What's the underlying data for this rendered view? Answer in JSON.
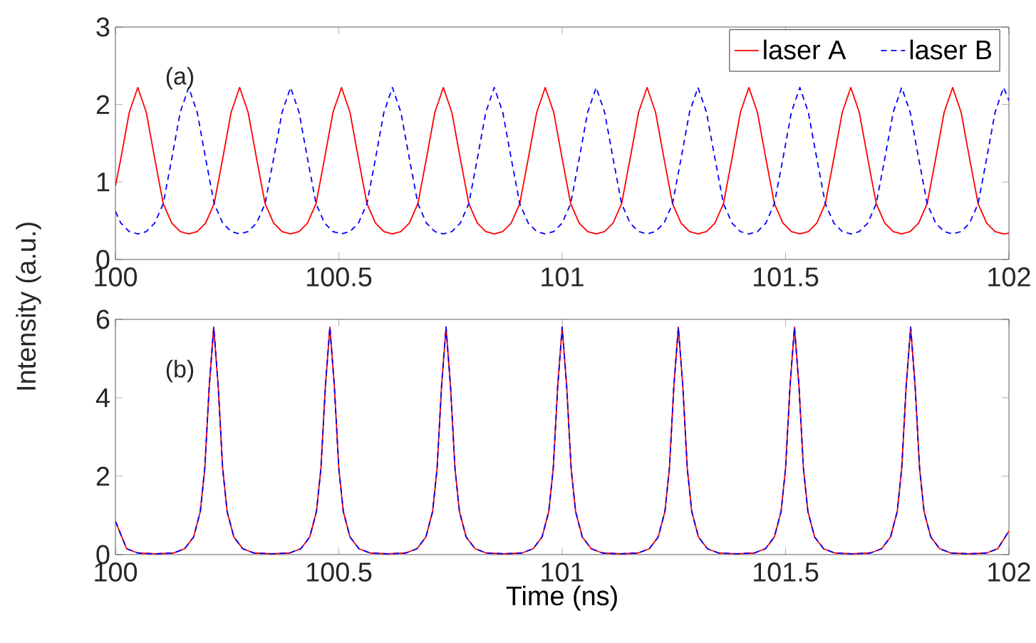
{
  "chart_data": [
    {
      "type": "line",
      "ylabel": "Intensity (a.u.)",
      "annotations": [
        "(a)"
      ],
      "legend": "top right",
      "xlim": [
        100,
        102
      ],
      "ylim": [
        0,
        3
      ],
      "xticks": [
        100,
        100.5,
        101,
        101.5,
        102
      ],
      "yticks": [
        0,
        1,
        2,
        3
      ],
      "x": [
        100,
        100.012,
        100.031,
        100.05,
        100.069,
        100.088,
        100.107,
        100.126,
        100.145,
        100.164,
        100.183,
        100.202,
        100.221,
        100.24,
        100.259,
        100.278,
        100.297,
        100.316,
        100.335,
        100.354,
        100.373,
        100.392,
        100.411,
        100.43,
        100.449,
        100.468,
        100.487,
        100.506,
        100.525,
        100.544,
        100.563,
        100.582,
        100.601,
        100.62,
        100.639,
        100.658,
        100.677,
        100.696,
        100.715,
        100.734,
        100.753,
        100.772,
        100.791,
        100.81,
        100.829,
        100.848,
        100.867,
        100.886,
        100.905,
        100.924,
        100.943,
        100.962,
        100.981,
        101.0,
        101.019,
        101.038,
        101.057,
        101.076,
        101.095,
        101.114,
        101.133,
        101.152,
        101.171,
        101.19,
        101.209,
        101.228,
        101.247,
        101.266,
        101.285,
        101.304,
        101.323,
        101.342,
        101.361,
        101.38,
        101.399,
        101.418,
        101.437,
        101.456,
        101.475,
        101.494,
        101.513,
        101.532,
        101.551,
        101.57,
        101.589,
        101.608,
        101.627,
        101.646,
        101.665,
        101.684,
        101.703,
        101.722,
        101.741,
        101.76,
        101.779,
        101.798,
        101.817,
        101.836,
        101.855,
        101.874,
        101.893,
        101.912,
        101.931,
        101.95,
        101.969,
        101.988,
        102
      ],
      "series": [
        {
          "name": "laser A",
          "color": "#ff0000",
          "line_style": "solid",
          "values": [
            0.95,
            1.3,
            1.9,
            2.22,
            1.9,
            1.3,
            0.72,
            0.47,
            0.36,
            0.33,
            0.36,
            0.47,
            0.72,
            1.3,
            1.9,
            2.22,
            1.9,
            1.3,
            0.72,
            0.47,
            0.36,
            0.33,
            0.36,
            0.47,
            0.72,
            1.3,
            1.9,
            2.22,
            1.9,
            1.3,
            0.72,
            0.47,
            0.36,
            0.33,
            0.36,
            0.47,
            0.72,
            1.3,
            1.9,
            2.22,
            1.9,
            1.3,
            0.72,
            0.47,
            0.36,
            0.33,
            0.36,
            0.47,
            0.72,
            1.3,
            1.9,
            2.22,
            1.9,
            1.3,
            0.72,
            0.47,
            0.36,
            0.33,
            0.36,
            0.47,
            0.72,
            1.3,
            1.9,
            2.22,
            1.9,
            1.3,
            0.72,
            0.47,
            0.36,
            0.33,
            0.36,
            0.47,
            0.72,
            1.3,
            1.9,
            2.22,
            1.9,
            1.3,
            0.72,
            0.47,
            0.36,
            0.33,
            0.36,
            0.47,
            0.72,
            1.3,
            1.9,
            2.22,
            1.9,
            1.3,
            0.72,
            0.47,
            0.36,
            0.33,
            0.36,
            0.47,
            0.72,
            1.3,
            1.9,
            2.22,
            1.9,
            1.3,
            0.72,
            0.47,
            0.36,
            0.33,
            0.34
          ]
        },
        {
          "name": "laser B",
          "color": "#0000ff",
          "line_style": "dashed",
          "values": [
            0.62,
            0.47,
            0.36,
            0.33,
            0.36,
            0.47,
            0.72,
            1.3,
            1.9,
            2.22,
            1.9,
            1.3,
            0.72,
            0.47,
            0.36,
            0.33,
            0.36,
            0.47,
            0.72,
            1.3,
            1.9,
            2.22,
            1.9,
            1.3,
            0.72,
            0.47,
            0.36,
            0.33,
            0.36,
            0.47,
            0.72,
            1.3,
            1.9,
            2.22,
            1.9,
            1.3,
            0.72,
            0.47,
            0.36,
            0.33,
            0.36,
            0.47,
            0.72,
            1.3,
            1.9,
            2.22,
            1.9,
            1.3,
            0.72,
            0.47,
            0.36,
            0.33,
            0.36,
            0.47,
            0.72,
            1.3,
            1.9,
            2.22,
            1.9,
            1.3,
            0.72,
            0.47,
            0.36,
            0.33,
            0.36,
            0.47,
            0.72,
            1.3,
            1.9,
            2.22,
            1.9,
            1.3,
            0.72,
            0.47,
            0.36,
            0.33,
            0.36,
            0.47,
            0.72,
            1.3,
            1.9,
            2.22,
            1.9,
            1.3,
            0.72,
            0.47,
            0.36,
            0.33,
            0.36,
            0.47,
            0.72,
            1.3,
            1.9,
            2.22,
            1.9,
            1.3,
            0.72,
            0.47,
            0.36,
            0.33,
            0.36,
            0.47,
            0.72,
            1.3,
            1.9,
            2.22,
            2.05
          ]
        }
      ]
    },
    {
      "type": "line",
      "xlabel": "Time (ns)",
      "annotations": [
        "(b)"
      ],
      "xlim": [
        100,
        102
      ],
      "ylim": [
        0,
        6
      ],
      "xticks": [
        100,
        100.5,
        101,
        101.5,
        102
      ],
      "yticks": [
        0,
        2,
        4,
        6
      ],
      "x": [
        100,
        100.025,
        100.05,
        100.09,
        100.13,
        100.155,
        100.175,
        100.19,
        100.2,
        100.21,
        100.22,
        100.23,
        100.24,
        100.25,
        100.265,
        100.285,
        100.31,
        100.35,
        100.39,
        100.415,
        100.435,
        100.45,
        100.46,
        100.47,
        100.48,
        100.49,
        100.5,
        100.51,
        100.525,
        100.545,
        100.57,
        100.61,
        100.65,
        100.675,
        100.695,
        100.71,
        100.72,
        100.73,
        100.74,
        100.75,
        100.76,
        100.77,
        100.785,
        100.805,
        100.83,
        100.87,
        100.91,
        100.935,
        100.955,
        100.97,
        100.98,
        100.99,
        101,
        101.01,
        101.02,
        101.03,
        101.045,
        101.065,
        101.09,
        101.13,
        101.17,
        101.195,
        101.215,
        101.23,
        101.24,
        101.25,
        101.26,
        101.27,
        101.28,
        101.29,
        101.305,
        101.325,
        101.35,
        101.39,
        101.43,
        101.455,
        101.475,
        101.49,
        101.5,
        101.51,
        101.52,
        101.53,
        101.54,
        101.55,
        101.565,
        101.585,
        101.61,
        101.65,
        101.69,
        101.715,
        101.735,
        101.75,
        101.76,
        101.77,
        101.78,
        101.79,
        101.8,
        101.81,
        101.825,
        101.845,
        101.87,
        101.91,
        101.95,
        101.975,
        102
      ],
      "series": [
        {
          "color": "#ff0000",
          "line_style": "solid",
          "values": [
            0.85,
            0.15,
            0.04,
            0.02,
            0.04,
            0.15,
            0.45,
            1.1,
            2.2,
            4.3,
            5.8,
            4.3,
            2.2,
            1.1,
            0.45,
            0.15,
            0.04,
            0.02,
            0.04,
            0.15,
            0.45,
            1.1,
            2.2,
            4.3,
            5.8,
            4.3,
            2.2,
            1.1,
            0.45,
            0.15,
            0.04,
            0.02,
            0.04,
            0.15,
            0.45,
            1.1,
            2.2,
            4.3,
            5.8,
            4.3,
            2.2,
            1.1,
            0.45,
            0.15,
            0.04,
            0.02,
            0.04,
            0.15,
            0.45,
            1.1,
            2.2,
            4.3,
            5.8,
            4.3,
            2.2,
            1.1,
            0.45,
            0.15,
            0.04,
            0.02,
            0.04,
            0.15,
            0.45,
            1.1,
            2.2,
            4.3,
            5.8,
            4.3,
            2.2,
            1.1,
            0.45,
            0.15,
            0.04,
            0.02,
            0.04,
            0.15,
            0.45,
            1.1,
            2.2,
            4.3,
            5.8,
            4.3,
            2.2,
            1.1,
            0.45,
            0.15,
            0.04,
            0.02,
            0.04,
            0.15,
            0.45,
            1.1,
            2.2,
            4.3,
            5.8,
            4.3,
            2.2,
            1.1,
            0.45,
            0.15,
            0.04,
            0.02,
            0.04,
            0.15,
            0.6
          ]
        },
        {
          "color": "#0000ff",
          "line_style": "dashed",
          "values": [
            0.85,
            0.15,
            0.04,
            0.02,
            0.04,
            0.15,
            0.45,
            1.1,
            2.2,
            4.3,
            5.8,
            4.3,
            2.2,
            1.1,
            0.45,
            0.15,
            0.04,
            0.02,
            0.04,
            0.15,
            0.45,
            1.1,
            2.2,
            4.3,
            5.8,
            4.3,
            2.2,
            1.1,
            0.45,
            0.15,
            0.04,
            0.02,
            0.04,
            0.15,
            0.45,
            1.1,
            2.2,
            4.3,
            5.8,
            4.3,
            2.2,
            1.1,
            0.45,
            0.15,
            0.04,
            0.02,
            0.04,
            0.15,
            0.45,
            1.1,
            2.2,
            4.3,
            5.8,
            4.3,
            2.2,
            1.1,
            0.45,
            0.15,
            0.04,
            0.02,
            0.04,
            0.15,
            0.45,
            1.1,
            2.2,
            4.3,
            5.8,
            4.3,
            2.2,
            1.1,
            0.45,
            0.15,
            0.04,
            0.02,
            0.04,
            0.15,
            0.45,
            1.1,
            2.2,
            4.3,
            5.8,
            4.3,
            2.2,
            1.1,
            0.45,
            0.15,
            0.04,
            0.02,
            0.04,
            0.15,
            0.45,
            1.1,
            2.2,
            4.3,
            5.8,
            4.3,
            2.2,
            1.1,
            0.45,
            0.15,
            0.04,
            0.02,
            0.04,
            0.15,
            0.6
          ]
        }
      ]
    }
  ]
}
